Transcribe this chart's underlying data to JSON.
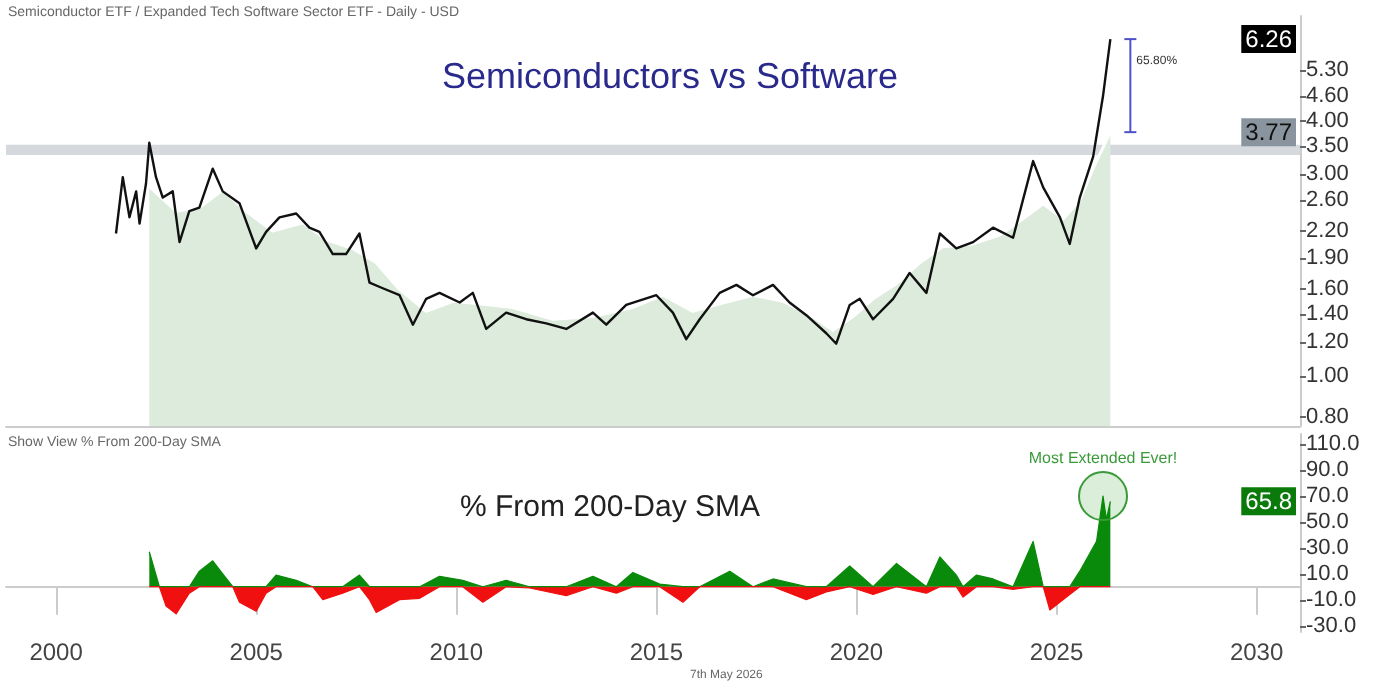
{
  "chart_data": [
    {
      "type": "line",
      "title": "Semiconductors vs Software",
      "log": "y",
      "marker": "none",
      "line_style": "solid",
      "tick_labels": "y",
      "annotations": [
        "Semiconductor ETF / Expanded Tech Software Sector ETF - Daily - USD",
        "6.26",
        "3.77",
        "65.80%"
      ],
      "xlim": [
        "1998-10",
        "2031-02"
      ],
      "xticks": [
        "2000",
        "2005",
        "2010",
        "2015",
        "2020",
        "2025",
        "2030"
      ],
      "ylim": [
        0.76,
        7.1
      ],
      "yticks": [
        {
          "value": 0.8,
          "label": "0.80"
        },
        {
          "value": 1,
          "label": "1.00"
        },
        {
          "value": 1.2,
          "label": "1.20"
        },
        {
          "value": 1.4,
          "label": "1.40"
        },
        {
          "value": 1.6,
          "label": "1.60"
        },
        {
          "value": 1.9,
          "label": "1.90"
        },
        {
          "value": 2.2,
          "label": "2.20"
        },
        {
          "value": 2.6,
          "label": "2.60"
        },
        {
          "value": 3,
          "label": "3.00"
        },
        {
          "value": 3.5,
          "label": "3.50"
        },
        {
          "value": 4,
          "label": "4.00"
        },
        {
          "value": 4.6,
          "label": "4.60"
        },
        {
          "value": 5.3,
          "label": "5.30"
        }
      ],
      "bands": [
        {
          "axis": "y",
          "from": 3.33,
          "to": 3.52,
          "color": "#d5d8dc"
        }
      ],
      "series": [
        {
          "type": "area",
          "color": "#dcebdc",
          "x": [
            "2002-05",
            "2003-01",
            "2003-08",
            "2004-03",
            "2004-10",
            "2005-06",
            "2006-03",
            "2006-10",
            "2007-06",
            "2008-01",
            "2008-08",
            "2009-04",
            "2009-12",
            "2010-08",
            "2011-06",
            "2012-06",
            "2013-06",
            "2014-06",
            "2015-03",
            "2015-12",
            "2016-08",
            "2017-06",
            "2018-03",
            "2018-12",
            "2019-06",
            "2019-12",
            "2020-06",
            "2021-01",
            "2021-08",
            "2022-03",
            "2022-12",
            "2023-08",
            "2024-03",
            "2024-09",
            "2025-03",
            "2025-08",
            "2025-12",
            "2026-05-07"
          ],
          "values": [
            2.8,
            2.45,
            2.5,
            2.75,
            2.45,
            2.2,
            2.3,
            2.1,
            2.0,
            1.85,
            1.6,
            1.42,
            1.5,
            1.48,
            1.45,
            1.36,
            1.38,
            1.45,
            1.55,
            1.42,
            1.48,
            1.55,
            1.5,
            1.38,
            1.28,
            1.38,
            1.52,
            1.65,
            1.85,
            2.02,
            2.05,
            2.15,
            2.35,
            2.55,
            2.35,
            2.6,
            3.1,
            3.77
          ]
        },
        {
          "color": "#111111",
          "x": [
            "2001-07",
            "2001-09",
            "2001-11",
            "2002-01",
            "2002-02",
            "2002-04",
            "2002-05",
            "2002-07",
            "2002-09",
            "2002-12",
            "2003-02",
            "2003-05",
            "2003-08",
            "2003-12",
            "2004-03",
            "2004-08",
            "2005-01",
            "2005-04",
            "2005-08",
            "2006-01",
            "2006-05",
            "2006-08",
            "2006-12",
            "2007-04",
            "2007-08",
            "2007-11",
            "2008-03",
            "2008-08",
            "2008-12",
            "2009-04",
            "2009-08",
            "2010-02",
            "2010-06",
            "2010-10",
            "2011-04",
            "2011-10",
            "2012-04",
            "2012-10",
            "2013-06",
            "2013-10",
            "2014-04",
            "2015-01",
            "2015-06",
            "2015-10",
            "2016-02",
            "2016-08",
            "2017-01",
            "2017-06",
            "2017-12",
            "2018-05",
            "2018-10",
            "2019-04",
            "2019-07",
            "2019-11",
            "2020-02",
            "2020-06",
            "2020-12",
            "2021-05",
            "2021-10",
            "2022-02",
            "2022-07",
            "2022-12",
            "2023-06",
            "2023-12",
            "2024-06",
            "2024-09",
            "2025-02",
            "2025-05",
            "2025-08",
            "2025-12",
            "2026-03",
            "2026-04",
            "2026-05-07"
          ],
          "values": [
            2.17,
            2.95,
            2.37,
            2.73,
            2.29,
            2.85,
            3.56,
            2.95,
            2.64,
            2.73,
            2.07,
            2.45,
            2.5,
            3.09,
            2.73,
            2.56,
            2.0,
            2.19,
            2.37,
            2.42,
            2.24,
            2.19,
            1.94,
            1.94,
            2.17,
            1.66,
            1.61,
            1.55,
            1.32,
            1.52,
            1.57,
            1.49,
            1.57,
            1.29,
            1.41,
            1.36,
            1.33,
            1.29,
            1.41,
            1.32,
            1.47,
            1.55,
            1.41,
            1.22,
            1.36,
            1.57,
            1.64,
            1.55,
            1.64,
            1.49,
            1.39,
            1.26,
            1.19,
            1.47,
            1.52,
            1.36,
            1.52,
            1.75,
            1.57,
            2.17,
            2.0,
            2.07,
            2.24,
            2.12,
            3.22,
            2.79,
            2.37,
            2.05,
            2.64,
            3.3,
            4.59,
            5.3,
            6.26
          ]
        }
      ]
    },
    {
      "type": "area",
      "title": "% From 200-Day SMA",
      "marker": "none",
      "line_style": "solid",
      "annotations": [
        "Show View % From 200-Day SMA",
        {
          "text": "Most Extended Ever!",
          "x": "2026-03",
          "y": 70
        },
        "65.8",
        "7th May 2026"
      ],
      "xlim": [
        "1998-10",
        "2031-02"
      ],
      "xticks": [
        "2000",
        "2005",
        "2010",
        "2015",
        "2020",
        "2025",
        "2030"
      ],
      "ylim": [
        -35,
        118
      ],
      "yticks": [
        {
          "value": -30,
          "label": "-30.0"
        },
        {
          "value": -10,
          "label": "-10.0"
        },
        {
          "value": 10,
          "label": "10.0"
        },
        {
          "value": 30,
          "label": "30.0"
        },
        {
          "value": 50,
          "label": "50.0"
        },
        {
          "value": 70,
          "label": "70.0"
        },
        {
          "value": 90,
          "label": "90.0"
        },
        {
          "value": 110,
          "label": "110.0"
        }
      ],
      "x": [
        "2002-05",
        "2002-08",
        "2002-10",
        "2003-01",
        "2003-05",
        "2003-08",
        "2003-12",
        "2004-03",
        "2004-06",
        "2004-08",
        "2005-01",
        "2005-04",
        "2005-07",
        "2006-01",
        "2006-06",
        "2006-09",
        "2007-03",
        "2007-08",
        "2007-11",
        "2008-01",
        "2008-08",
        "2009-02",
        "2009-08",
        "2010-03",
        "2010-09",
        "2011-04",
        "2011-11",
        "2012-10",
        "2013-06",
        "2014-01",
        "2014-06",
        "2015-02",
        "2015-09",
        "2016-02",
        "2016-11",
        "2017-06",
        "2017-12",
        "2018-10",
        "2019-04",
        "2019-11",
        "2020-06",
        "2021-01",
        "2021-10",
        "2022-02",
        "2022-07",
        "2022-09",
        "2023-01",
        "2023-06",
        "2023-12",
        "2024-06",
        "2024-09",
        "2024-11",
        "2025-05",
        "2025-08",
        "2026-01",
        "2026-03",
        "2026-04",
        "2026-05-07"
      ],
      "series": [
        {
          "color": "#0a8a0a",
          "values": [
            27,
            0,
            0,
            0,
            0,
            12,
            20,
            10,
            0,
            0,
            0,
            0,
            9,
            5,
            0,
            0,
            0,
            9,
            0,
            0,
            0,
            0,
            8,
            5,
            0,
            5,
            0,
            0,
            8,
            0,
            11,
            2,
            0,
            0,
            12,
            0,
            6,
            0,
            0,
            16,
            0,
            18,
            0,
            23,
            9,
            0,
            9,
            6,
            0,
            35,
            0,
            0,
            0,
            12,
            35,
            70,
            52,
            66
          ]
        },
        {
          "color": "#f01010",
          "values": [
            0,
            0,
            -15,
            -21,
            -5,
            0,
            0,
            0,
            0,
            -12,
            -19,
            -5,
            0,
            0,
            0,
            -10,
            -5,
            0,
            -10,
            -20,
            -10,
            -9,
            0,
            0,
            -12,
            0,
            -1,
            -7,
            0,
            -5,
            0,
            0,
            -12,
            0,
            0,
            0,
            0,
            -10,
            -4,
            0,
            -6,
            0,
            -5,
            0,
            0,
            -8,
            0,
            0,
            -2,
            0,
            0,
            -18,
            -6,
            0,
            0,
            0,
            0,
            0
          ]
        }
      ]
    }
  ]
}
